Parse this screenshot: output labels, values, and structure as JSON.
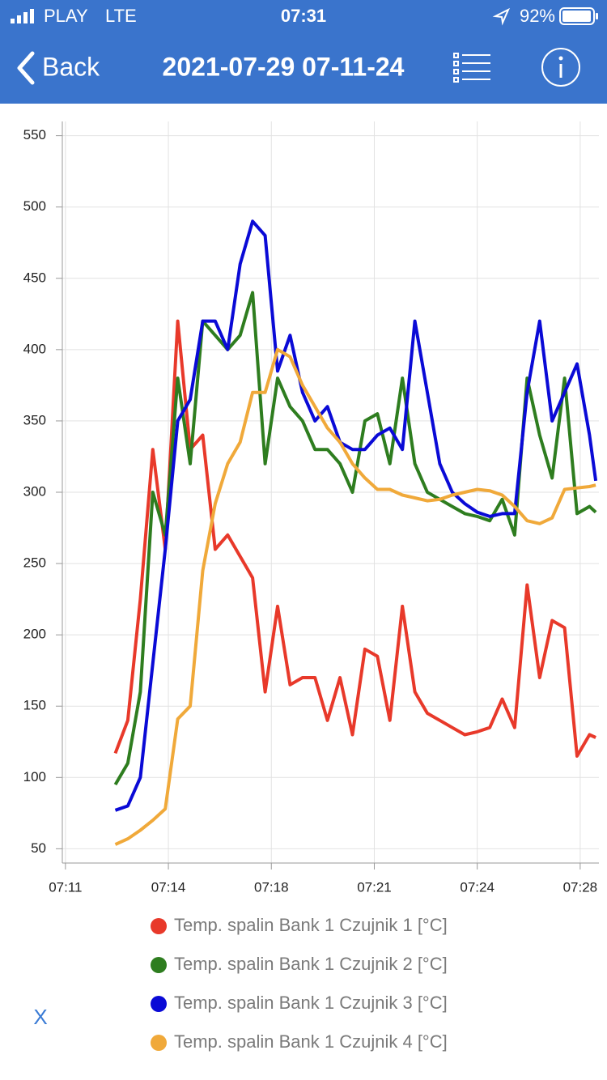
{
  "status_bar": {
    "carrier": "PLAY",
    "network": "LTE",
    "time": "07:31",
    "battery": "92%"
  },
  "nav": {
    "back": "Back",
    "title": "2021-07-29 07-11-24"
  },
  "close": "X",
  "chart_data": {
    "type": "line",
    "x": [
      12.6,
      13.0,
      13.4,
      13.8,
      14.2,
      14.6,
      15.0,
      15.4,
      15.8,
      16.2,
      16.6,
      17.0,
      17.4,
      17.8,
      18.2,
      18.6,
      19.0,
      19.4,
      19.8,
      20.2,
      20.6,
      21.0,
      21.4,
      21.8,
      22.2,
      22.6,
      23.0,
      23.4,
      23.8,
      24.2,
      24.6,
      25.0,
      25.4,
      25.8,
      26.2,
      26.6,
      27.0,
      27.4,
      27.8,
      28.0
    ],
    "xlim": [
      10.9,
      28.1
    ],
    "xticks": [
      {
        "value": 11.0,
        "label": "07:11"
      },
      {
        "value": 14.3,
        "label": "07:14"
      },
      {
        "value": 17.6,
        "label": "07:18"
      },
      {
        "value": 20.9,
        "label": "07:21"
      },
      {
        "value": 24.2,
        "label": "07:24"
      },
      {
        "value": 27.5,
        "label": "07:28"
      }
    ],
    "ylim": [
      40,
      560
    ],
    "yticks": [
      50,
      100,
      150,
      200,
      250,
      300,
      350,
      400,
      450,
      500,
      550
    ],
    "grid": true,
    "series": [
      {
        "name": "Temp. spalin Bank 1 Czujnik 1 [°C]",
        "color": "#e8392a",
        "values": [
          117,
          140,
          225,
          330,
          260,
          420,
          330,
          340,
          260,
          270,
          255,
          240,
          160,
          220,
          165,
          170,
          170,
          140,
          170,
          130,
          190,
          185,
          140,
          220,
          160,
          145,
          140,
          135,
          130,
          132,
          135,
          155,
          135,
          235,
          170,
          210,
          205,
          115,
          130,
          128
        ]
      },
      {
        "name": "Temp. spalin Bank 1 Czujnik 2 [°C]",
        "color": "#2e7d1f",
        "values": [
          95,
          110,
          160,
          300,
          270,
          380,
          320,
          420,
          410,
          400,
          410,
          440,
          320,
          380,
          360,
          350,
          330,
          330,
          320,
          300,
          350,
          355,
          320,
          380,
          320,
          300,
          295,
          290,
          285,
          283,
          280,
          295,
          270,
          380,
          340,
          310,
          380,
          285,
          290,
          286
        ]
      },
      {
        "name": "Temp. spalin Bank 1 Czujnik 3 [°C]",
        "color": "#0a0ad6",
        "values": [
          77,
          80,
          100,
          180,
          260,
          350,
          365,
          420,
          420,
          400,
          460,
          490,
          480,
          385,
          410,
          370,
          350,
          360,
          335,
          330,
          330,
          340,
          345,
          330,
          420,
          370,
          320,
          300,
          292,
          286,
          283,
          285,
          285,
          370,
          420,
          350,
          370,
          390,
          340,
          308
        ]
      },
      {
        "name": "Temp. spalin Bank 1 Czujnik 4 [°C]",
        "color": "#f0a93a",
        "values": [
          53,
          57,
          63,
          70,
          78,
          141,
          150,
          245,
          292,
          320,
          335,
          370,
          370,
          400,
          395,
          375,
          360,
          345,
          335,
          320,
          310,
          302,
          302,
          298,
          296,
          294,
          295,
          298,
          300,
          302,
          301,
          298,
          290,
          280,
          278,
          282,
          302,
          303,
          304,
          305
        ]
      }
    ]
  }
}
